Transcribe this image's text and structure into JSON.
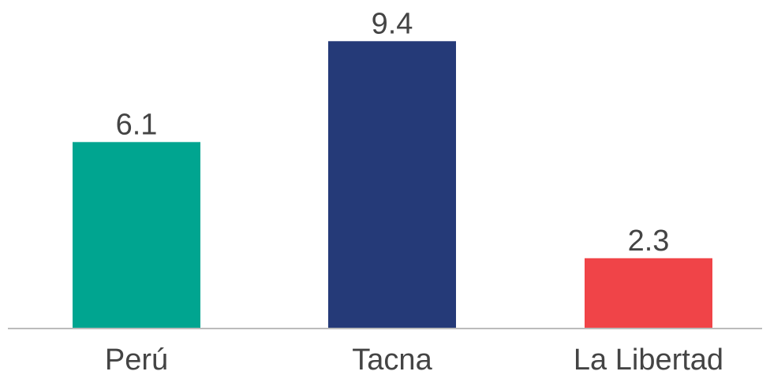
{
  "chart_data": {
    "type": "bar",
    "categories": [
      "Perú",
      "Tacna",
      "La Libertad"
    ],
    "values": [
      6.1,
      9.4,
      2.3
    ],
    "value_labels": [
      "6.1",
      "9.4",
      "2.3"
    ],
    "colors": [
      "#00A590",
      "#253A78",
      "#F04448"
    ],
    "baseline_color": "#BBBBBB",
    "title": "",
    "xlabel": "",
    "ylabel": "",
    "ylim": [
      0,
      10
    ],
    "grid": false,
    "legend": "none"
  }
}
